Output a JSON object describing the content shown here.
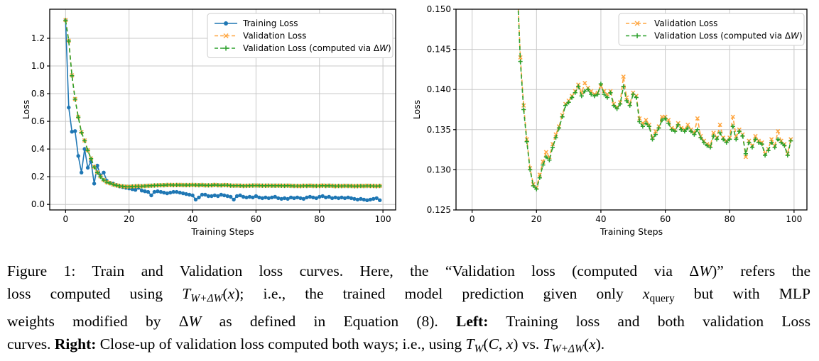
{
  "page": {
    "background": "#ffffff"
  },
  "chart_data": {
    "type": "line",
    "x_description": "Training step index, 0 to 99",
    "xlabel": "Training Steps",
    "ylabel": "Loss",
    "grid": true,
    "series": [
      {
        "name": "Training Loss",
        "color": "#1f77b4",
        "line": "solid",
        "marker": "circle",
        "values": [
          1.33,
          0.7,
          0.525,
          0.53,
          0.35,
          0.23,
          0.4,
          0.265,
          0.31,
          0.15,
          0.28,
          0.21,
          0.23,
          0.17,
          0.155,
          0.15,
          0.14,
          0.13,
          0.125,
          0.12,
          0.115,
          0.11,
          0.105,
          0.12,
          0.1,
          0.095,
          0.09,
          0.065,
          0.09,
          0.095,
          0.09,
          0.085,
          0.08,
          0.085,
          0.09,
          0.09,
          0.085,
          0.08,
          0.075,
          0.07,
          0.065,
          0.035,
          0.05,
          0.07,
          0.07,
          0.06,
          0.06,
          0.065,
          0.06,
          0.07,
          0.065,
          0.06,
          0.055,
          0.035,
          0.06,
          0.065,
          0.055,
          0.05,
          0.055,
          0.05,
          0.06,
          0.05,
          0.045,
          0.05,
          0.045,
          0.05,
          0.055,
          0.045,
          0.04,
          0.045,
          0.04,
          0.05,
          0.045,
          0.05,
          0.045,
          0.04,
          0.05,
          0.055,
          0.05,
          0.045,
          0.055,
          0.06,
          0.05,
          0.055,
          0.045,
          0.05,
          0.045,
          0.05,
          0.045,
          0.05,
          0.045,
          0.04,
          0.035,
          0.04,
          0.035,
          0.03,
          0.035,
          0.04,
          0.045,
          0.03
        ]
      },
      {
        "name": "Validation Loss",
        "color": "#ffa640",
        "line": "dashed",
        "marker": "x",
        "values": [
          1.332,
          1.182,
          0.932,
          0.762,
          0.632,
          0.522,
          0.462,
          0.392,
          0.332,
          0.272,
          0.232,
          0.202,
          0.177,
          0.1615,
          0.1535,
          0.144,
          0.138,
          0.1338,
          0.1302,
          0.1282,
          0.1278,
          0.1294,
          0.131,
          0.1322,
          0.1316,
          0.1332,
          0.1344,
          0.1354,
          0.1368,
          0.1382,
          0.1386,
          0.1392,
          0.1398,
          0.1406,
          0.1396,
          0.1408,
          0.1402,
          0.1398,
          0.1394,
          0.1396,
          0.1404,
          0.1398,
          0.1394,
          0.1398,
          0.1382,
          0.1378,
          0.1384,
          0.1416,
          0.139,
          0.1382,
          0.1396,
          0.1392,
          0.1364,
          0.1358,
          0.1362,
          0.1356,
          0.134,
          0.1348,
          0.1354,
          0.1366,
          0.1366,
          0.1362,
          0.1352,
          0.135,
          0.1358,
          0.1352,
          0.135,
          0.1356,
          0.135,
          0.1346,
          0.1364,
          0.1342,
          0.1336,
          0.1332,
          0.133,
          0.1346,
          0.134,
          0.1356,
          0.134,
          0.1336,
          0.134,
          0.1366,
          0.1342,
          0.135,
          0.1344,
          0.1316,
          0.1336,
          0.133,
          0.1342,
          0.1336,
          0.1334,
          0.132,
          0.1326,
          0.1338,
          0.133,
          0.1348,
          0.1336,
          0.1332,
          0.132,
          0.1338
        ]
      },
      {
        "name": "Validation Loss (computed via ΔW)",
        "color": "#2ca02c",
        "line": "dashed",
        "marker": "plus",
        "values": [
          1.33,
          1.18,
          0.93,
          0.76,
          0.63,
          0.52,
          0.46,
          0.39,
          0.33,
          0.27,
          0.23,
          0.2,
          0.175,
          0.16,
          0.153,
          0.1435,
          0.1375,
          0.1335,
          0.13,
          0.128,
          0.1276,
          0.129,
          0.1306,
          0.1316,
          0.1312,
          0.1328,
          0.134,
          0.1352,
          0.1366,
          0.138,
          0.1384,
          0.139,
          0.1396,
          0.1404,
          0.1392,
          0.1398,
          0.14,
          0.1394,
          0.1392,
          0.1394,
          0.1407,
          0.1394,
          0.139,
          0.1396,
          0.138,
          0.1376,
          0.1382,
          0.1404,
          0.1386,
          0.138,
          0.1394,
          0.139,
          0.136,
          0.1354,
          0.1358,
          0.1354,
          0.1338,
          0.1344,
          0.1352,
          0.1362,
          0.1364,
          0.1358,
          0.135,
          0.1348,
          0.1356,
          0.135,
          0.1348,
          0.1352,
          0.1348,
          0.1344,
          0.135,
          0.134,
          0.1334,
          0.133,
          0.1328,
          0.1342,
          0.1338,
          0.1346,
          0.1338,
          0.1334,
          0.1338,
          0.1354,
          0.1338,
          0.1348,
          0.1342,
          0.132,
          0.1334,
          0.1328,
          0.1338,
          0.1334,
          0.1332,
          0.1318,
          0.1324,
          0.1334,
          0.1328,
          0.1338,
          0.1334,
          0.133,
          0.1318,
          0.1336
        ]
      }
    ],
    "charts": [
      {
        "id": "left",
        "title": "",
        "xlabel": "Training Steps",
        "ylabel": "Loss",
        "xlim": [
          -5,
          104
        ],
        "ylim": [
          -0.04,
          1.41
        ],
        "xtick_values": [
          0,
          20,
          40,
          60,
          80,
          100
        ],
        "xtick_labels": [
          "0",
          "20",
          "40",
          "60",
          "80",
          "100"
        ],
        "ytick_values": [
          0.0,
          0.2,
          0.4,
          0.6,
          0.8,
          1.0,
          1.2
        ],
        "ytick_labels": [
          "0.0",
          "0.2",
          "0.4",
          "0.6",
          "0.8",
          "1.0",
          "1.2"
        ],
        "series_indices": [
          0,
          1,
          2
        ],
        "legend_position": "upper right"
      },
      {
        "id": "right",
        "title": "",
        "xlabel": "Training Steps",
        "ylabel": "Loss",
        "xlim": [
          -5,
          104
        ],
        "ylim": [
          0.125,
          0.15
        ],
        "xtick_values": [
          0,
          20,
          40,
          60,
          80,
          100
        ],
        "xtick_labels": [
          "0",
          "20",
          "40",
          "60",
          "80",
          "100"
        ],
        "ytick_values": [
          0.125,
          0.13,
          0.135,
          0.14,
          0.145,
          0.15
        ],
        "ytick_labels": [
          "0.125",
          "0.130",
          "0.135",
          "0.140",
          "0.145",
          "0.150"
        ],
        "series_indices": [
          1,
          2
        ],
        "legend_position": "upper right"
      }
    ]
  },
  "caption": {
    "lines": [
      [
        {
          "t": "Figure 1: Train and Validation loss curves. Here, the “Validation loss (computed via "
        },
        {
          "t": "Δ"
        },
        {
          "t": "W",
          "s": "i"
        },
        {
          "t": ")” refers the"
        }
      ],
      [
        {
          "t": "loss computed using "
        },
        {
          "t": "T",
          "s": "i"
        },
        {
          "t": "W+ΔW",
          "s": "isub"
        },
        {
          "t": "("
        },
        {
          "t": "x",
          "s": "i"
        },
        {
          "t": ")"
        },
        {
          "t": "; i.e., the trained model prediction given only "
        },
        {
          "t": "x",
          "s": "i"
        },
        {
          "t": "query",
          "s": "sub"
        },
        {
          "t": " but with MLP"
        }
      ],
      [
        {
          "t": "weights modified by "
        },
        {
          "t": "Δ"
        },
        {
          "t": "W",
          "s": "i"
        },
        {
          "t": " as defined in Equation (8). "
        },
        {
          "t": "Left:",
          "s": "b"
        },
        {
          "t": " Training loss and both validation Loss"
        }
      ],
      [
        {
          "t": "curves. "
        },
        {
          "t": "Right:",
          "s": "b"
        },
        {
          "t": " Close-up of validation loss computed both ways; i.e., using "
        },
        {
          "t": "T",
          "s": "i"
        },
        {
          "t": "W",
          "s": "isub"
        },
        {
          "t": "("
        },
        {
          "t": "C",
          "s": "i"
        },
        {
          "t": ", "
        },
        {
          "t": "x",
          "s": "i"
        },
        {
          "t": ")"
        },
        {
          "t": " vs. "
        },
        {
          "t": "T",
          "s": "i"
        },
        {
          "t": "W+ΔW",
          "s": "isub"
        },
        {
          "t": "("
        },
        {
          "t": "x",
          "s": "i"
        },
        {
          "t": ")."
        }
      ]
    ]
  },
  "style_colors": {
    "grid": "#c8c8c8",
    "spine": "#000000",
    "plot_background": "#ffffff",
    "legend_border": "#cccccc"
  }
}
